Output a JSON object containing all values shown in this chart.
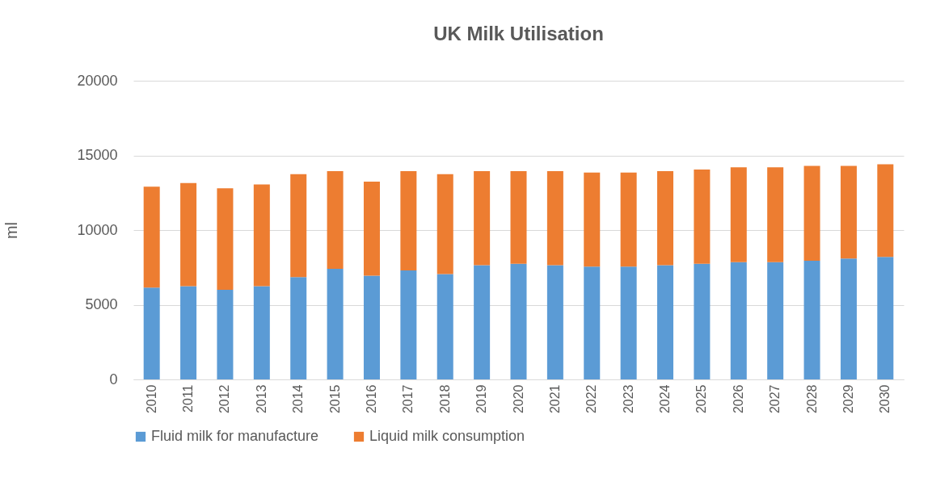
{
  "chart_data": {
    "type": "bar",
    "title": "UK Milk Utilisation",
    "ylabel": "ml",
    "stacked": true,
    "grid": "y",
    "legend": "bottom",
    "categories": [
      "2010",
      "2011",
      "2012",
      "2013",
      "2014",
      "2015",
      "2016",
      "2017",
      "2018",
      "2019",
      "2020",
      "2021",
      "2022",
      "2023",
      "2024",
      "2025",
      "2026",
      "2027",
      "2028",
      "2029",
      "2030"
    ],
    "ylim": [
      0,
      20000
    ],
    "yticks": [
      0,
      5000,
      10000,
      15000,
      20000
    ],
    "series": [
      {
        "name": "Fluid milk for manufacture",
        "color": "#5b9bd5",
        "values": [
          6150,
          6250,
          6000,
          6250,
          6850,
          7400,
          6950,
          7300,
          7050,
          7650,
          7750,
          7650,
          7550,
          7550,
          7650,
          7750,
          7850,
          7850,
          7950,
          8100,
          8200
        ]
      },
      {
        "name": "Liquid milk consumption",
        "color": "#ed7d31",
        "values": [
          6750,
          6900,
          6800,
          6800,
          6900,
          6550,
          6300,
          6650,
          6700,
          6300,
          6200,
          6300,
          6300,
          6300,
          6300,
          6300,
          6350,
          6350,
          6350,
          6200,
          6200
        ]
      }
    ]
  }
}
